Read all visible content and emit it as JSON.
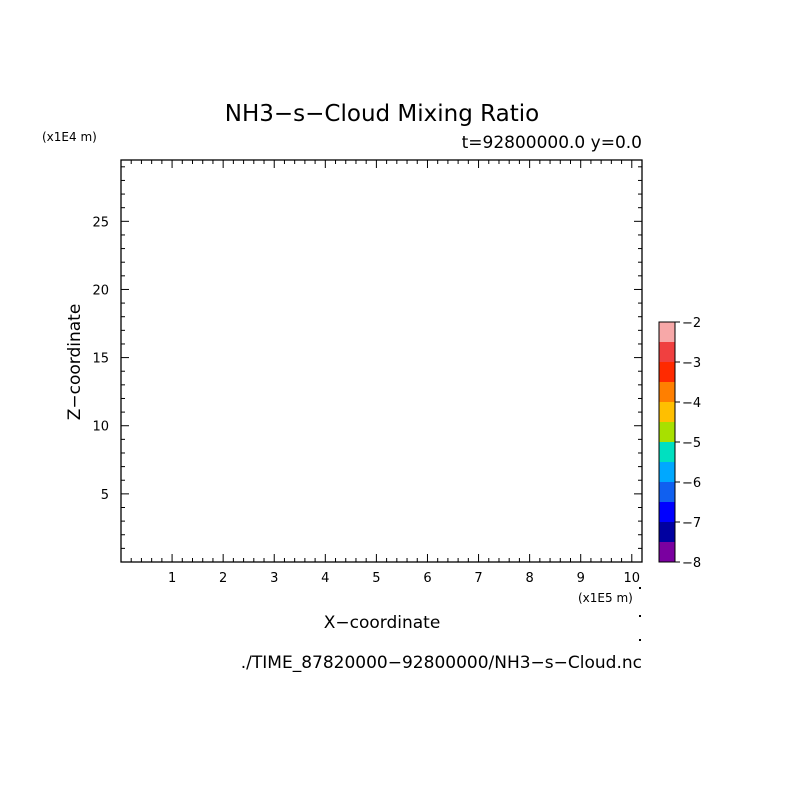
{
  "chart_data": {
    "type": "heatmap",
    "title": "NH3−s−Cloud Mixing Ratio",
    "subtitle": "t=92800000.0 y=0.0",
    "xlabel": "X−coordinate",
    "ylabel": "Z−coordinate",
    "x_unit": "(x1E5 m)",
    "y_unit": "(x1E4 m)",
    "xlim": [
      0,
      10.2
    ],
    "ylim": [
      0,
      29.5
    ],
    "x_ticks": [
      1,
      2,
      3,
      4,
      5,
      6,
      7,
      8,
      9,
      10
    ],
    "y_ticks": [
      5,
      10,
      15,
      20,
      25
    ],
    "grid": false,
    "values": [],
    "colorbar": {
      "range": [
        -8,
        -2
      ],
      "ticks": [
        -2,
        -3,
        -4,
        -5,
        -6,
        -7,
        -8
      ],
      "colors": [
        "#f7a8a8",
        "#f04040",
        "#ff2a00",
        "#ff7f00",
        "#ffbf00",
        "#a8e000",
        "#00e0c0",
        "#00a8ff",
        "#1060f0",
        "#0000ff",
        "#0000a0",
        "#7a00a0"
      ]
    },
    "source": "./TIME_87820000−92800000/NH3−s−Cloud.nc"
  }
}
